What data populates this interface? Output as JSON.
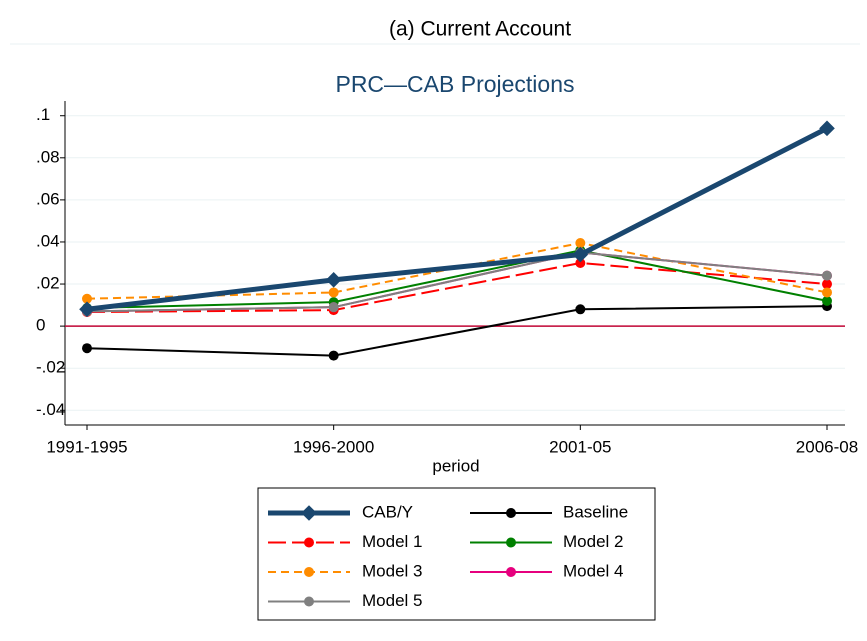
{
  "header": {
    "title": "(a) Current Account"
  },
  "chart_data": {
    "type": "line",
    "title": "PRC—CAB Projections",
    "x_label": "period",
    "categories": [
      "1991-1995",
      "1996-2000",
      "2001-05",
      "2006-08"
    ],
    "series": [
      {
        "name": "CAB/Y",
        "color": "#1a476f",
        "values": [
          0.008,
          0.022,
          0.034,
          0.094
        ]
      },
      {
        "name": "Baseline",
        "color": "#000000",
        "values": [
          -0.0105,
          -0.014,
          0.008,
          0.0095
        ]
      },
      {
        "name": "Model 1",
        "color": "#ff0000",
        "values": [
          0.0067,
          0.0076,
          0.03,
          0.02
        ]
      },
      {
        "name": "Model 2",
        "color": "#008000",
        "values": [
          0.0086,
          0.0114,
          0.036,
          0.012
        ]
      },
      {
        "name": "Model 3",
        "color": "#ff8c00",
        "values": [
          0.013,
          0.016,
          0.0395,
          0.016
        ]
      },
      {
        "name": "Model 4",
        "color": "#e6007e",
        "values": [
          0.007,
          0.009,
          0.035,
          0.024
        ]
      },
      {
        "name": "Model 5",
        "color": "#808080",
        "values": [
          0.007,
          0.009,
          0.035,
          0.024
        ]
      }
    ],
    "ylim": [
      -0.047,
      0.107
    ],
    "yticks": [
      {
        "value": -0.04,
        "label": "-.04"
      },
      {
        "value": -0.02,
        "label": "-.02"
      },
      0,
      {
        "value": 0.02,
        "label": ".02"
      },
      {
        "value": 0.04,
        "label": ".04"
      },
      {
        "value": 0.06,
        "label": ".06"
      },
      {
        "value": 0.08,
        "label": ".08"
      },
      {
        "value": 0.1,
        "label": ".1"
      }
    ],
    "yline": 0,
    "yline_color": "#c10534",
    "grid": true
  }
}
